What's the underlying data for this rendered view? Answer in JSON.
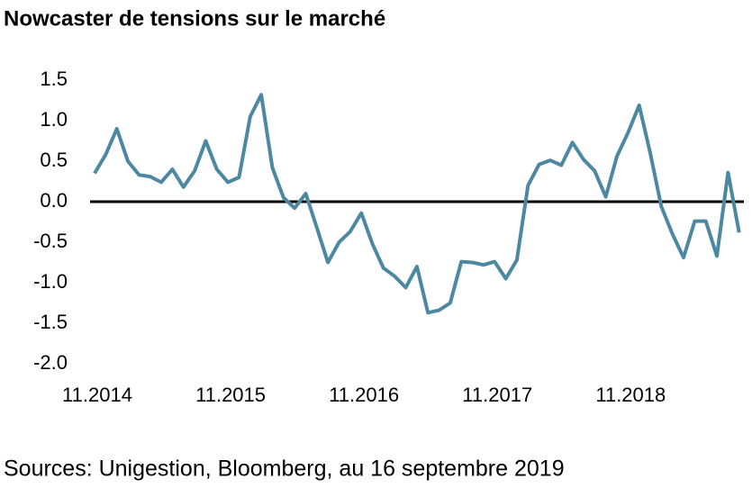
{
  "chart_data": {
    "type": "line",
    "title": "Nowcaster de tensions sur le marché",
    "source": "Sources: Unigestion, Bloomberg, au 16 septembre 2019",
    "categories": [
      "11.2014",
      null,
      null,
      null,
      null,
      null,
      null,
      null,
      null,
      null,
      null,
      null,
      "11.2015",
      null,
      null,
      null,
      null,
      null,
      null,
      null,
      null,
      null,
      null,
      null,
      "11.2016",
      null,
      null,
      null,
      null,
      null,
      null,
      null,
      null,
      null,
      null,
      null,
      "11.2017",
      null,
      null,
      null,
      null,
      null,
      null,
      null,
      null,
      null,
      null,
      null,
      "11.2018",
      null,
      null,
      null,
      null,
      null,
      null,
      null,
      null,
      null,
      null
    ],
    "series": [
      {
        "color": "#4d88a2",
        "values": [
          0.35,
          0.58,
          0.9,
          0.5,
          0.33,
          0.31,
          0.24,
          0.4,
          0.18,
          0.38,
          0.75,
          0.4,
          0.24,
          0.3,
          1.05,
          1.32,
          0.42,
          0.05,
          -0.08,
          0.1,
          -0.32,
          -0.75,
          -0.5,
          -0.37,
          -0.14,
          -0.52,
          -0.82,
          -0.92,
          -1.06,
          -0.8,
          -1.37,
          -1.34,
          -1.25,
          -0.74,
          -0.75,
          -0.78,
          -0.74,
          -0.95,
          -0.72,
          0.2,
          0.46,
          0.51,
          0.45,
          0.73,
          0.52,
          0.38,
          0.06,
          0.56,
          0.85,
          1.19,
          0.6,
          -0.06,
          -0.4,
          -0.69,
          -0.24,
          -0.24,
          -0.67,
          0.36,
          -0.38
        ]
      }
    ],
    "ylim": [
      -2,
      1.5
    ],
    "yticks": [
      {
        "value": -2,
        "label": "-2.0"
      },
      -1.5,
      {
        "value": -1,
        "label": "-1.0"
      },
      -0.5,
      {
        "value": 0,
        "label": "0.0"
      },
      0.5,
      {
        "value": 1,
        "label": "1.0"
      },
      1.5
    ]
  }
}
